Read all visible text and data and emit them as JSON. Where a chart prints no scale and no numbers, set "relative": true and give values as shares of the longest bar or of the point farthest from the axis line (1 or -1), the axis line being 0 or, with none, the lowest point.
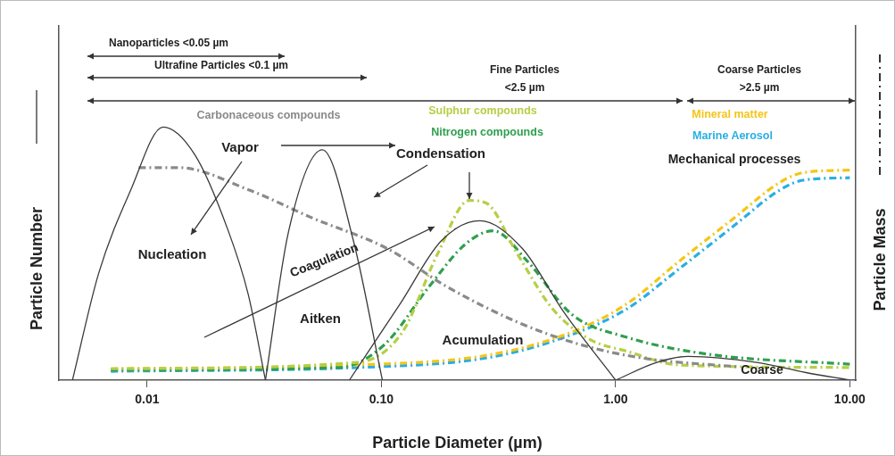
{
  "chart_data": {
    "type": "line",
    "relative": true,
    "xlabel": "Particle Diameter (µm)",
    "ylabel": "Particle Number",
    "y2label": "Particle Mass",
    "log": "x",
    "grid": false,
    "legend": false,
    "tick_labels": "x",
    "marker": "none",
    "xlim": [
      0.0042,
      10.6
    ],
    "xticks": [
      0.01,
      {
        "value": 0.1,
        "label": "0.10"
      },
      {
        "value": 1,
        "label": "1.00"
      },
      {
        "value": 10,
        "label": "10.00"
      }
    ],
    "series": [
      {
        "color": "#3a3a3a",
        "line_style": "solid",
        "x": [
          0.0048,
          0.0062,
          0.0085,
          0.0117,
          0.016,
          0.022,
          0.027,
          0.032
        ],
        "values": [
          0,
          0.42,
          0.75,
          1,
          0.89,
          0.6,
          0.34,
          0
        ]
      },
      {
        "color": "#3a3a3a",
        "line_style": "solid",
        "x": [
          0.032,
          0.04,
          0.056,
          0.076,
          0.101
        ],
        "values": [
          0,
          0.58,
          0.91,
          0.55,
          0
        ]
      },
      {
        "color": "#3a3a3a",
        "line_style": "solid",
        "x": [
          0.073,
          0.12,
          0.18,
          0.263,
          0.4,
          0.6,
          1.0
        ],
        "values": [
          0,
          0.3,
          0.55,
          0.63,
          0.52,
          0.27,
          0
        ]
      },
      {
        "color": "#3a3a3a",
        "line_style": "solid",
        "x": [
          1,
          1.5,
          2.04,
          4,
          6.5,
          10
        ],
        "values": [
          0,
          0.07,
          0.094,
          0.07,
          0.03,
          0
        ]
      },
      {
        "name": "Carbonaceous compounds",
        "color": "#8a8a8a",
        "line_style": "dashed",
        "x": [
          0.0092,
          0.0136,
          0.0275,
          0.051,
          0.106,
          0.19,
          0.38,
          0.71,
          1.31,
          3.4
        ],
        "values": [
          0.84,
          0.84,
          0.75,
          0.64,
          0.52,
          0.37,
          0.23,
          0.14,
          0.087,
          0.052
        ]
      },
      {
        "name": "Sulphur compounds",
        "color": "#b5cf45",
        "line_style": "dashed",
        "x": [
          0.007,
          0.079,
          0.123,
          0.174,
          0.237,
          0.28,
          0.38,
          0.54,
          0.78,
          1.11,
          1.87,
          10
        ],
        "values": [
          0.045,
          0.07,
          0.19,
          0.5,
          0.71,
          0.7,
          0.5,
          0.28,
          0.16,
          0.115,
          0.06,
          0.05
        ]
      },
      {
        "name": "Nitrogen compounds",
        "color": "#2f9f4f",
        "line_style": "dashed",
        "x": [
          0.007,
          0.066,
          0.103,
          0.16,
          0.23,
          0.3,
          0.42,
          0.65,
          1.11,
          2.6,
          10
        ],
        "values": [
          0.04,
          0.05,
          0.14,
          0.37,
          0.54,
          0.59,
          0.47,
          0.26,
          0.17,
          0.1,
          0.063
        ]
      },
      {
        "name": "Mineral matter",
        "color": "#f5c518",
        "line_style": "dashed",
        "x": [
          0.007,
          0.079,
          0.29,
          0.65,
          1.11,
          1.87,
          3.2,
          5.0,
          6.3,
          10
        ],
        "values": [
          0.045,
          0.06,
          0.1,
          0.19,
          0.3,
          0.47,
          0.64,
          0.78,
          0.82,
          0.83
        ]
      },
      {
        "name": "Marine Aerosol",
        "color": "#29aee3",
        "line_style": "dashed",
        "x": [
          0.007,
          0.079,
          0.29,
          0.65,
          1.11,
          1.87,
          3.2,
          5.0,
          6.3,
          10
        ],
        "values": [
          0.035,
          0.05,
          0.09,
          0.18,
          0.28,
          0.44,
          0.61,
          0.75,
          0.79,
          0.8
        ]
      }
    ],
    "annotations": [
      "Nanoparticles <0.05 µm",
      "Ultrafine Particles <0.1 µm",
      "Fine Particles <2.5 µm",
      "Coarse Particles >2.5 µm",
      "Vapor",
      "Condensation",
      "Nucleation",
      "Coagulation",
      "Aitken",
      "Acumulation",
      "Coarse",
      "Mechanical processes"
    ]
  }
}
